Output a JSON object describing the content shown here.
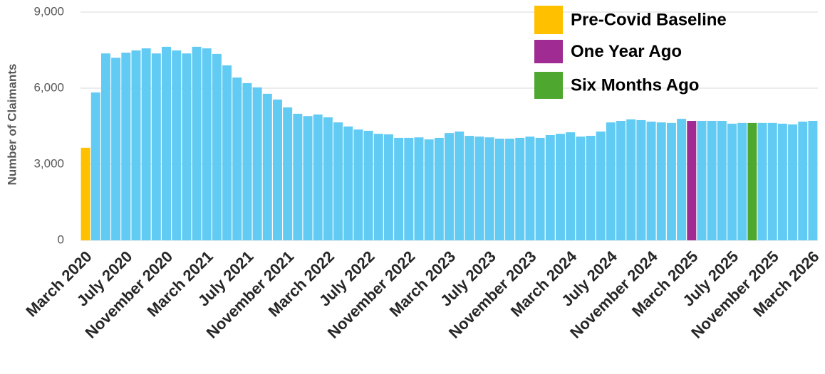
{
  "chart_data": {
    "type": "bar",
    "y_label": "Number of Claimants",
    "categories": [
      "March 2020",
      null,
      null,
      null,
      "July 2020",
      null,
      null,
      null,
      "November 2020",
      null,
      null,
      null,
      "March 2021",
      null,
      null,
      null,
      "July 2021",
      null,
      null,
      null,
      "November 2021",
      null,
      null,
      null,
      "March 2022",
      null,
      null,
      null,
      "July 2022",
      null,
      null,
      null,
      "November 2022",
      null,
      null,
      null,
      "March 2023",
      null,
      null,
      null,
      "July 2023",
      null,
      null,
      null,
      "November 2023",
      null,
      null,
      null,
      "March 2024",
      null,
      null,
      null,
      "July 2024",
      null,
      null,
      null,
      "November 2024",
      null,
      null,
      null,
      "March 2025",
      null,
      null,
      null,
      "July 2025",
      null,
      null,
      null,
      "November 2025",
      null,
      null,
      null,
      "March 2026"
    ],
    "values": [
      3650,
      5830,
      7370,
      7200,
      7400,
      7490,
      7570,
      7370,
      7630,
      7490,
      7370,
      7630,
      7570,
      7350,
      6900,
      6420,
      6200,
      6030,
      5780,
      5550,
      5240,
      4990,
      4900,
      4960,
      4850,
      4650,
      4490,
      4370,
      4320,
      4200,
      4180,
      4040,
      4040,
      4060,
      3980,
      4040,
      4230,
      4290,
      4120,
      4090,
      4060,
      4010,
      4010,
      4040,
      4090,
      4040,
      4150,
      4200,
      4260,
      4090,
      4120,
      4290,
      4650,
      4710,
      4770,
      4740,
      4680,
      4650,
      4630,
      4790,
      4710,
      4710,
      4710,
      4710,
      4600,
      4630,
      4630,
      4630,
      4630,
      4600,
      4570,
      4680,
      4710
    ],
    "colors": [
      "#ffc000",
      "#61cbf4",
      "#61cbf4",
      "#61cbf4",
      "#61cbf4",
      "#61cbf4",
      "#61cbf4",
      "#61cbf4",
      "#61cbf4",
      "#61cbf4",
      "#61cbf4",
      "#61cbf4",
      "#61cbf4",
      "#61cbf4",
      "#61cbf4",
      "#61cbf4",
      "#61cbf4",
      "#61cbf4",
      "#61cbf4",
      "#61cbf4",
      "#61cbf4",
      "#61cbf4",
      "#61cbf4",
      "#61cbf4",
      "#61cbf4",
      "#61cbf4",
      "#61cbf4",
      "#61cbf4",
      "#61cbf4",
      "#61cbf4",
      "#61cbf4",
      "#61cbf4",
      "#61cbf4",
      "#61cbf4",
      "#61cbf4",
      "#61cbf4",
      "#61cbf4",
      "#61cbf4",
      "#61cbf4",
      "#61cbf4",
      "#61cbf4",
      "#61cbf4",
      "#61cbf4",
      "#61cbf4",
      "#61cbf4",
      "#61cbf4",
      "#61cbf4",
      "#61cbf4",
      "#61cbf4",
      "#61cbf4",
      "#61cbf4",
      "#61cbf4",
      "#61cbf4",
      "#61cbf4",
      "#61cbf4",
      "#61cbf4",
      "#61cbf4",
      "#61cbf4",
      "#61cbf4",
      "#61cbf4",
      "#a02b93",
      "#61cbf4",
      "#61cbf4",
      "#61cbf4",
      "#61cbf4",
      "#61cbf4",
      "#4ea72e",
      "#61cbf4",
      "#61cbf4",
      "#61cbf4",
      "#61cbf4",
      "#61cbf4",
      "#61cbf4"
    ],
    "legend": [
      {
        "name": "Pre-Covid Baseline",
        "color": "#ffc000"
      },
      {
        "name": "One Year Ago",
        "color": "#a02b93"
      },
      {
        "name": "Six Months Ago",
        "color": "#4ea72e"
      }
    ],
    "ylim": [
      0,
      9000
    ],
    "yticks": [
      0,
      {
        "value": 3000,
        "label": "3,000"
      },
      {
        "value": 6000,
        "label": "6,000"
      },
      {
        "value": 9000,
        "label": "9,000"
      }
    ],
    "grid": true
  }
}
